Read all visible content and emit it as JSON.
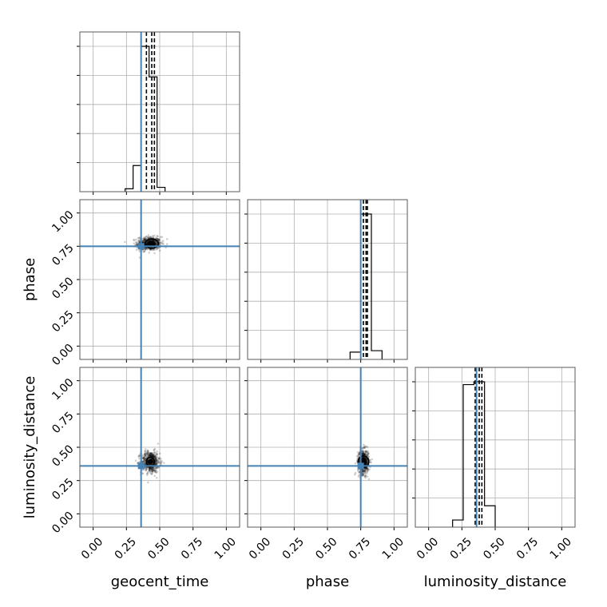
{
  "chart_data": {
    "type": "corner",
    "parameters": [
      "geocent_time",
      "phase",
      "luminosity_distance"
    ],
    "axis_labels": {
      "x": [
        "geocent_time",
        "phase",
        "luminosity_distance"
      ],
      "y": [
        "",
        "phase",
        "luminosity_distance"
      ]
    },
    "ticks": [
      0.0,
      0.25,
      0.5,
      0.75,
      1.0
    ],
    "tick_labels": [
      "0.00",
      "0.25",
      "0.50",
      "0.75",
      "1.00"
    ],
    "xlim": [
      -0.1,
      1.1
    ],
    "ylim": [
      -0.1,
      1.1
    ],
    "grid": true,
    "colors": {
      "truth": "#4682b4",
      "hist": "#000000",
      "frame": "#5a5a5a",
      "grid": "#b0b0b0"
    },
    "truths": {
      "geocent_time": 0.36,
      "phase": 0.75,
      "luminosity_distance": 0.36
    },
    "histograms": [
      {
        "param": "geocent_time",
        "bin_edges": [
          0.24,
          0.3,
          0.36,
          0.42,
          0.48,
          0.54
        ],
        "counts": [
          0.02,
          0.18,
          1.0,
          0.79,
          0.03
        ],
        "quantiles": [
          0.4,
          0.44,
          0.46
        ]
      },
      {
        "param": "phase",
        "bin_edges": [
          0.67,
          0.75,
          0.83,
          0.91
        ],
        "counts": [
          0.05,
          1.0,
          0.06
        ],
        "quantiles": [
          0.77,
          0.79,
          0.8
        ]
      },
      {
        "param": "luminosity_distance",
        "bin_edges": [
          0.18,
          0.26,
          0.34,
          0.42,
          0.5
        ],
        "counts": [
          0.05,
          1.0,
          1.02,
          0.15
        ],
        "quantiles": [
          0.35,
          0.38,
          0.4
        ]
      }
    ],
    "scatter_panels": [
      {
        "x_param": "geocent_time",
        "y_param": "phase",
        "center": [
          0.42,
          0.77
        ],
        "spread": [
          0.045,
          0.025
        ],
        "contour_center": [
          0.44,
          0.77
        ],
        "contour_radius": [
          0.05,
          0.035
        ]
      },
      {
        "x_param": "geocent_time",
        "y_param": "luminosity_distance",
        "center": [
          0.43,
          0.39
        ],
        "spread": [
          0.035,
          0.04
        ],
        "contour_center": [
          0.43,
          0.39
        ],
        "contour_radius": [
          0.03,
          0.035
        ]
      },
      {
        "x_param": "phase",
        "y_param": "luminosity_distance",
        "center": [
          0.77,
          0.39
        ],
        "spread": [
          0.02,
          0.045
        ],
        "contour_center": [
          0.77,
          0.39
        ],
        "contour_radius": [
          0.04,
          0.045
        ]
      }
    ]
  }
}
